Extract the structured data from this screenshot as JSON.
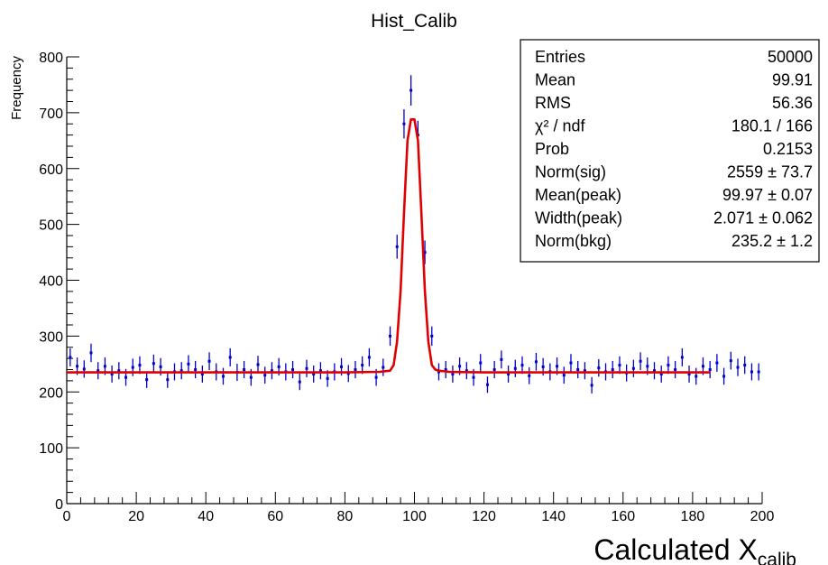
{
  "chart_data": {
    "type": "scatter",
    "title": "Hist_Calib",
    "xlabel_main": "Calculated X",
    "xlabel_sub": "calib",
    "ylabel": "Frequency",
    "xlim": [
      0,
      200
    ],
    "ylim": [
      0,
      800
    ],
    "x_ticks": [
      0,
      20,
      40,
      60,
      80,
      100,
      120,
      140,
      160,
      180,
      200
    ],
    "y_ticks": [
      0,
      100,
      200,
      300,
      400,
      500,
      600,
      700,
      800
    ],
    "grid": false,
    "colors": {
      "points": "#0000cc",
      "fit": "#e00000",
      "axis": "#000000"
    },
    "series": [
      {
        "values_x": [
          1,
          3,
          5,
          7,
          9,
          11,
          13,
          15,
          17,
          19,
          21,
          23,
          25,
          27,
          29,
          31,
          33,
          35,
          37,
          39,
          41,
          43,
          45,
          47,
          49,
          51,
          53,
          55,
          57,
          59,
          61,
          63,
          65,
          67,
          69,
          71,
          73,
          75,
          77,
          79,
          81,
          83,
          85,
          87,
          89,
          91,
          93,
          95,
          97,
          99,
          101,
          103,
          105,
          107,
          109,
          111,
          113,
          115,
          117,
          119,
          121,
          123,
          125,
          127,
          129,
          131,
          133,
          135,
          137,
          139,
          141,
          143,
          145,
          147,
          149,
          151,
          153,
          155,
          157,
          159,
          161,
          163,
          165,
          167,
          169,
          171,
          173,
          175,
          177,
          179,
          181,
          183,
          185,
          187,
          189,
          191,
          193,
          195,
          197,
          199
        ],
        "values_y": [
          262,
          246,
          241,
          270,
          238,
          246,
          232,
          238,
          226,
          244,
          248,
          222,
          251,
          245,
          222,
          236,
          238,
          250,
          240,
          232,
          255,
          236,
          228,
          262,
          235,
          240,
          226,
          249,
          230,
          238,
          245,
          236,
          240,
          218,
          242,
          232,
          238,
          224,
          236,
          245,
          233,
          240,
          248,
          262,
          226,
          244,
          300,
          460,
          680,
          740,
          660,
          450,
          300,
          236,
          240,
          232,
          246,
          238,
          226,
          252,
          213,
          240,
          258,
          232,
          242,
          248,
          229,
          254,
          245,
          236,
          246,
          230,
          252,
          240,
          238,
          212,
          243,
          236,
          240,
          248,
          234,
          242,
          255,
          246,
          238,
          232,
          248,
          240,
          262,
          232,
          228,
          246,
          240,
          252,
          228,
          256,
          244,
          248,
          236,
          236
        ]
      },
      {
        "name": "fit",
        "values_x": [
          0,
          20,
          40,
          60,
          80,
          90,
          93,
          94,
          95,
          96,
          97,
          98,
          99,
          100,
          101,
          102,
          103,
          104,
          105,
          106,
          107,
          110,
          120,
          140,
          160,
          180,
          185
        ],
        "values_y": [
          235,
          235,
          235,
          235,
          235,
          236,
          238,
          248,
          290,
          380,
          520,
          650,
          688,
          688,
          650,
          520,
          380,
          290,
          248,
          240,
          238,
          236,
          235,
          235,
          235,
          235,
          235
        ]
      }
    ],
    "stats_box": {
      "rows": [
        {
          "label": "Entries",
          "value": "50000"
        },
        {
          "label": "Mean",
          "value": "99.91"
        },
        {
          "label": "RMS",
          "value": "56.36"
        },
        {
          "label": "χ² / ndf",
          "value": "180.1 / 166"
        },
        {
          "label": "Prob",
          "value": "0.2153"
        },
        {
          "label": "Norm(sig)",
          "value": "2559 ± 73.7"
        },
        {
          "label": "Mean(peak)",
          "value": "99.97 ± 0.07"
        },
        {
          "label": "Width(peak)",
          "value": "2.071 ± 0.062"
        },
        {
          "label": "Norm(bkg)",
          "value": "235.2 ± 1.2"
        }
      ]
    }
  }
}
